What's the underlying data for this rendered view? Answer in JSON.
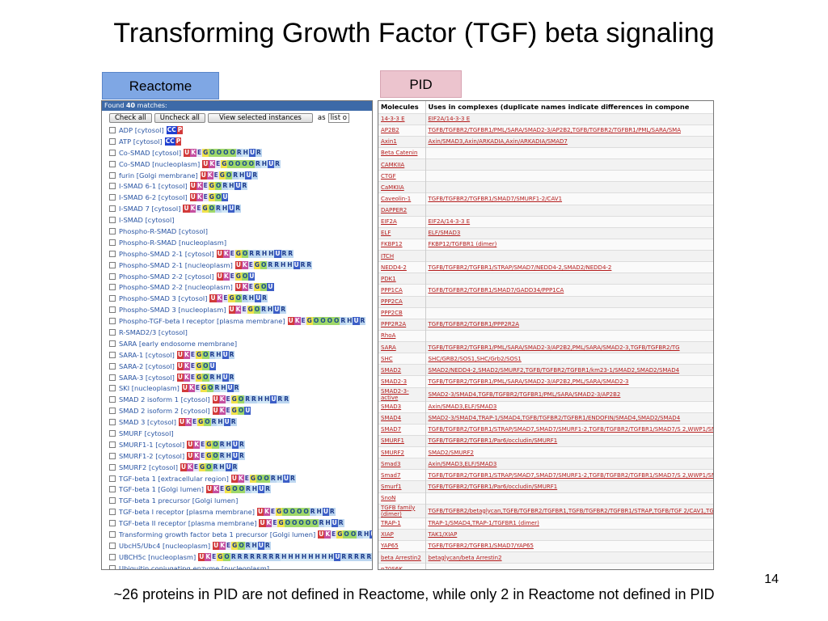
{
  "title": "Transforming Growth Factor (TGF) beta signaling",
  "labels": {
    "reactome": "Reactome",
    "pid": "PID"
  },
  "reactome": {
    "found_prefix": "Found ",
    "found_count": "40",
    "found_suffix": " matches:",
    "buttons": {
      "check_all": "Check all",
      "uncheck_all": "Uncheck all",
      "view_selected": "View selected instances"
    },
    "as_label": "as",
    "list_select": "list o",
    "items": [
      {
        "name": "ADP [cytosol]",
        "badges": [
          "CC",
          "P"
        ]
      },
      {
        "name": "ATP [cytosol]",
        "badges": [
          "CC",
          "P"
        ]
      },
      {
        "name": "Co-SMAD [cytosol]",
        "badges": [
          "U",
          "K",
          "E",
          "G",
          "O",
          "O",
          "O",
          "O",
          "R",
          "H",
          "U",
          "R"
        ]
      },
      {
        "name": "Co-SMAD [nucleoplasm]",
        "badges": [
          "U",
          "K",
          "E",
          "G",
          "O",
          "O",
          "O",
          "O",
          "R",
          "H",
          "U",
          "R"
        ]
      },
      {
        "name": "furin [Golgi membrane]",
        "badges": [
          "U",
          "K",
          "E",
          "G",
          "O",
          "R",
          "H",
          "U",
          "R"
        ]
      },
      {
        "name": "I-SMAD 6-1 [cytosol]",
        "badges": [
          "U",
          "K",
          "E",
          "G",
          "O",
          "R",
          "H",
          "U",
          "R"
        ]
      },
      {
        "name": "I-SMAD 6-2 [cytosol]",
        "badges": [
          "U",
          "K",
          "E",
          "G",
          "O",
          "U"
        ]
      },
      {
        "name": "I-SMAD 7 [cytosol]",
        "badges": [
          "U",
          "K",
          "E",
          "G",
          "O",
          "R",
          "H",
          "U",
          "R"
        ]
      },
      {
        "name": "I-SMAD [cytosol]",
        "badges": []
      },
      {
        "name": "Phospho-R-SMAD [cytosol]",
        "badges": []
      },
      {
        "name": "Phospho-R-SMAD [nucleoplasm]",
        "badges": []
      },
      {
        "name": "Phospho-SMAD 2-1 [cytosol]",
        "badges": [
          "U",
          "K",
          "E",
          "G",
          "O",
          "R",
          "R",
          "H",
          "H",
          "U",
          "R",
          "R"
        ]
      },
      {
        "name": "Phospho-SMAD 2-1 [nucleoplasm]",
        "badges": [
          "U",
          "K",
          "E",
          "G",
          "O",
          "R",
          "R",
          "H",
          "H",
          "U",
          "R",
          "R"
        ]
      },
      {
        "name": "Phospho-SMAD 2-2 [cytosol]",
        "badges": [
          "U",
          "K",
          "E",
          "G",
          "O",
          "U"
        ]
      },
      {
        "name": "Phospho-SMAD 2-2 [nucleoplasm]",
        "badges": [
          "U",
          "K",
          "E",
          "G",
          "O",
          "U"
        ]
      },
      {
        "name": "Phospho-SMAD 3 [cytosol]",
        "badges": [
          "U",
          "K",
          "E",
          "G",
          "O",
          "R",
          "H",
          "U",
          "R"
        ]
      },
      {
        "name": "Phospho-SMAD 3 [nucleoplasm]",
        "badges": [
          "U",
          "K",
          "E",
          "G",
          "O",
          "R",
          "H",
          "U",
          "R"
        ]
      },
      {
        "name": "Phospho-TGF-beta I receptor [plasma membrane]",
        "badges": [
          "U",
          "K",
          "E",
          "G",
          "O",
          "O",
          "O",
          "O",
          "R",
          "H",
          "U",
          "R"
        ]
      },
      {
        "name": "R-SMAD2/3 [cytosol]",
        "badges": []
      },
      {
        "name": "SARA [early endosome membrane]",
        "badges": []
      },
      {
        "name": "SARA-1 [cytosol]",
        "badges": [
          "U",
          "K",
          "E",
          "G",
          "O",
          "R",
          "H",
          "U",
          "R"
        ]
      },
      {
        "name": "SARA-2 [cytosol]",
        "badges": [
          "U",
          "K",
          "E",
          "G",
          "O",
          "U"
        ]
      },
      {
        "name": "SARA-3 [cytosol]",
        "badges": [
          "U",
          "K",
          "E",
          "G",
          "O",
          "R",
          "H",
          "U",
          "R"
        ]
      },
      {
        "name": "SKI [nucleoplasm]",
        "badges": [
          "U",
          "K",
          "E",
          "G",
          "O",
          "R",
          "H",
          "U",
          "R"
        ]
      },
      {
        "name": "SMAD 2 isoform 1 [cytosol]",
        "badges": [
          "U",
          "K",
          "E",
          "G",
          "O",
          "R",
          "R",
          "H",
          "H",
          "U",
          "R",
          "R"
        ]
      },
      {
        "name": "SMAD 2 isoform 2 [cytosol]",
        "badges": [
          "U",
          "K",
          "E",
          "G",
          "O",
          "U"
        ]
      },
      {
        "name": "SMAD 3 [cytosol]",
        "badges": [
          "U",
          "K",
          "E",
          "G",
          "O",
          "R",
          "H",
          "U",
          "R"
        ]
      },
      {
        "name": "SMURF [cytosol]",
        "badges": []
      },
      {
        "name": "SMURF1-1 [cytosol]",
        "badges": [
          "U",
          "K",
          "E",
          "G",
          "O",
          "R",
          "H",
          "U",
          "R"
        ]
      },
      {
        "name": "SMURF1-2 [cytosol]",
        "badges": [
          "U",
          "K",
          "E",
          "G",
          "O",
          "R",
          "H",
          "U",
          "R"
        ]
      },
      {
        "name": "SMURF2 [cytosol]",
        "badges": [
          "U",
          "K",
          "E",
          "G",
          "O",
          "R",
          "H",
          "U",
          "R"
        ]
      },
      {
        "name": "TGF-beta 1 [extracellular region]",
        "badges": [
          "U",
          "K",
          "E",
          "G",
          "O",
          "O",
          "R",
          "H",
          "U",
          "R"
        ]
      },
      {
        "name": "TGF-beta 1 [Golgi lumen]",
        "badges": [
          "U",
          "K",
          "E",
          "G",
          "O",
          "O",
          "R",
          "H",
          "U",
          "R"
        ]
      },
      {
        "name": "TGF-beta 1 precursor [Golgi lumen]",
        "badges": []
      },
      {
        "name": "TGF-beta I receptor [plasma membrane]",
        "badges": [
          "U",
          "K",
          "E",
          "G",
          "O",
          "O",
          "O",
          "O",
          "R",
          "H",
          "U",
          "R"
        ]
      },
      {
        "name": "TGF-beta II receptor [plasma membrane]",
        "badges": [
          "U",
          "K",
          "E",
          "G",
          "O",
          "O",
          "O",
          "O",
          "O",
          "R",
          "H",
          "U",
          "R"
        ]
      },
      {
        "name": "Transforming growth factor beta 1 precursor [Golgi lumen]",
        "badges": [
          "U",
          "K",
          "E",
          "G",
          "O",
          "O",
          "R",
          "H",
          "U",
          "R"
        ]
      },
      {
        "name": "UbcH5/Ubc4 [nucleoplasm]",
        "badges": [
          "U",
          "K",
          "E",
          "G",
          "O",
          "R",
          "H",
          "U",
          "R"
        ]
      },
      {
        "name": "UBCH5c [nucleoplasm]",
        "badges": [
          "U",
          "K",
          "E",
          "G",
          "O",
          "R",
          "R",
          "R",
          "R",
          "R",
          "R",
          "R",
          "R",
          "H",
          "H",
          "H",
          "H",
          "H",
          "H",
          "H",
          "H",
          "U",
          "R",
          "R",
          "R",
          "R",
          "R",
          "R",
          "R",
          "R"
        ]
      },
      {
        "name": "Ubiquitin conjugating enzyme [nucleoplasm]",
        "badges": []
      }
    ]
  },
  "pid": {
    "col_molecules": "Molecules",
    "col_complexes": "Uses in complexes (duplicate names indicate differences in compone",
    "rows": [
      {
        "mol": "14-3-3 E",
        "cmp": "EIF2A/14-3-3 E"
      },
      {
        "mol": "AP2B2",
        "cmp": "TGFB/TGFBR2/TGFBR1/PML/SARA/SMAD2-3/AP2B2,TGFB/TGFBR2/TGFBR1/PML/SARA/SMA"
      },
      {
        "mol": "Axin1",
        "cmp": "Axin/SMAD3,Axin/ARKADIA,Axin/ARKADIA/SMAD7"
      },
      {
        "mol": "Beta Catenin",
        "cmp": ""
      },
      {
        "mol": "CAMKIIA",
        "cmp": ""
      },
      {
        "mol": "CTGF",
        "cmp": ""
      },
      {
        "mol": "CaMKIIA",
        "cmp": ""
      },
      {
        "mol": "Caveolin-1",
        "cmp": "TGFB/TGFBR2/TGFBR1/SMAD7/SMURF1-2/CAV1"
      },
      {
        "mol": "DAPPER2",
        "cmp": ""
      },
      {
        "mol": "EIF2A",
        "cmp": "EIF2A/14-3-3 E"
      },
      {
        "mol": "ELF",
        "cmp": "ELF/SMAD3"
      },
      {
        "mol": "FKBP12",
        "cmp": "FKBP12/TGFBR1 (dimer)"
      },
      {
        "mol": "ITCH",
        "cmp": ""
      },
      {
        "mol": "NEDD4-2",
        "cmp": "TGFB/TGFBR2/TGFBR1/STRAP/SMAD7/NEDD4-2,SMAD2/NEDD4-2"
      },
      {
        "mol": "PDK1",
        "cmp": ""
      },
      {
        "mol": "PPP1CA",
        "cmp": "TGFB/TGFBR2/TGFBR1/SMAD7/GADD34/PPP1CA"
      },
      {
        "mol": "PPP2CA",
        "cmp": ""
      },
      {
        "mol": "PPP2CB",
        "cmp": ""
      },
      {
        "mol": "PPP2R2A",
        "cmp": "TGFB/TGFBR2/TGFBR1/PPP2R2A"
      },
      {
        "mol": "RhoA",
        "cmp": ""
      },
      {
        "mol": "SARA",
        "cmp": "TGFB/TGFBR2/TGFBR1/PML/SARA/SMAD2-3/AP2B2,PML/SARA/SMAD2-3,TGFB/TGFBR2/TG"
      },
      {
        "mol": "SHC",
        "cmp": "SHC/GRB2/SOS1,SHC/Grb2/SOS1"
      },
      {
        "mol": "SMAD2",
        "cmp": "SMAD2/NEDD4-2,SMAD2/SMURF2,TGFB/TGFBR2/TGFBR1/km23-1/SMAD2,SMAD2/SMAD4"
      },
      {
        "mol": "SMAD2-3",
        "cmp": "TGFB/TGFBR2/TGFBR1/PML/SARA/SMAD2-3/AP2B2,PML/SARA/SMAD2-3"
      },
      {
        "mol": "SMAD2-3-active",
        "cmp": "SMAD2-3/SMAD4,TGFB/TGFBR2/TGFBR1/PML/SARA/SMAD2-3/AP2B2"
      },
      {
        "mol": "SMAD3",
        "cmp": "Axin/SMAD3,ELF/SMAD3"
      },
      {
        "mol": "SMAD4",
        "cmp": "SMAD2-3/SMAD4,TRAP-1/SMAD4,TGFB/TGFBR2/TGFBR1/ENDOFIN/SMAD4,SMAD2/SMAD4"
      },
      {
        "mol": "SMAD7",
        "cmp": "TGFB/TGFBR2/TGFBR1/STRAP/SMAD7,SMAD7/SMURF1-2,TGFB/TGFBR2/TGFBR1/SMAD7/S 2,WWP1/SMAD7,TGFB/TGFBR2/TGFBR1/WWP1/SMAD7"
      },
      {
        "mol": "SMURF1",
        "cmp": "TGFB/TGFBR2/TGFBR1/Par6/occludin/SMURF1"
      },
      {
        "mol": "SMURF2",
        "cmp": "SMAD2/SMURF2"
      },
      {
        "mol": "Smad3",
        "cmp": "Axin/SMAD3,ELF/SMAD3"
      },
      {
        "mol": "Smad7",
        "cmp": "TGFB/TGFBR2/TGFBR1/STRAP/SMAD7,SMAD7/SMURF1-2,TGFB/TGFBR2/TGFBR1/SMAD7/S 2,WWP1/SMAD7,TGFB/TGFBR2/TGFBR1/WWP1/SMAD7"
      },
      {
        "mol": "Smurf1",
        "cmp": "TGFB/TGFBR2/TGFBR1/Par6/occludin/SMURF1"
      },
      {
        "mol": "SnoN",
        "cmp": ""
      },
      {
        "mol": "TGFB family (dimer)",
        "cmp": "TGFB/TGFBR2/betaglycan,TGFB/TGFBR2/TGFBR1,TGFB/TGFBR2/TGFBR1/STRAP,TGFB/TGF 2/CAV1,TGFB/TGFBR2/TGFBR1/SMAD7/YAP65,TGFB/TGFBR2/TGFBR1/PML/SARA,TGFB/TG 2,TGFB/TGFBR2/TGFBR1/DAB2,TGFB/TGFBR2/TGFBR1/PPP2R2A,TGFB/TGFBR2/TGFBR1/D"
      },
      {
        "mol": "TRAP-1",
        "cmp": "TRAP-1/SMAD4,TRAP-1/TGFBR1 (dimer)"
      },
      {
        "mol": "XIAP",
        "cmp": "TAK1/XIAP"
      },
      {
        "mol": "YAP65",
        "cmp": "TGFB/TGFBR2/TGFBR1/SMAD7/YAP65"
      },
      {
        "mol": "beta Arrestin2",
        "cmp": "betaglycan/beta Arrestin2"
      },
      {
        "mol": "p70S6K",
        "cmp": ""
      }
    ]
  },
  "page_number": "14",
  "footer": "~26 proteins in PID are not defined in Reactome, while only 2 in Reactome not defined in PID"
}
